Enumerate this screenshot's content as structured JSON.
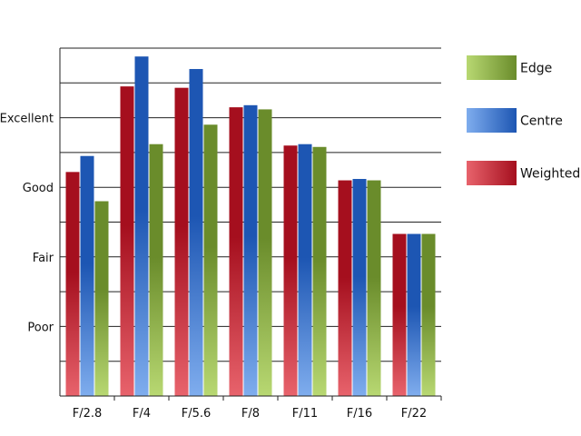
{
  "chart_data": {
    "type": "bar",
    "categories": [
      "F/2.8",
      "F/4",
      "F/5.6",
      "F/8",
      "F/11",
      "F/16",
      "F/22"
    ],
    "y_tick_labels": [
      {
        "value": 1,
        "label": "Poor"
      },
      {
        "value": 2,
        "label": "Fair"
      },
      {
        "value": 3,
        "label": "Good"
      },
      {
        "value": 4,
        "label": "Excellent"
      }
    ],
    "ylim": [
      0,
      5
    ],
    "grid": true,
    "legend_position": "right",
    "series": [
      {
        "name": "Weighted",
        "values": [
          3.22,
          4.45,
          4.43,
          4.15,
          3.6,
          3.1,
          2.33
        ]
      },
      {
        "name": "Centre",
        "values": [
          3.45,
          4.88,
          4.7,
          4.18,
          3.62,
          3.12,
          2.33
        ]
      },
      {
        "name": "Edge",
        "values": [
          2.8,
          3.62,
          3.9,
          4.12,
          3.58,
          3.1,
          2.33
        ]
      }
    ],
    "legend_order": [
      "Edge",
      "Centre",
      "Weighted"
    ],
    "colors": {
      "Weighted": {
        "dark": "#a50f1e",
        "light": "#e8636c"
      },
      "Centre": {
        "dark": "#1d56b3",
        "light": "#7fadee"
      },
      "Edge": {
        "dark": "#6a8c2b",
        "light": "#b8d872"
      }
    }
  }
}
